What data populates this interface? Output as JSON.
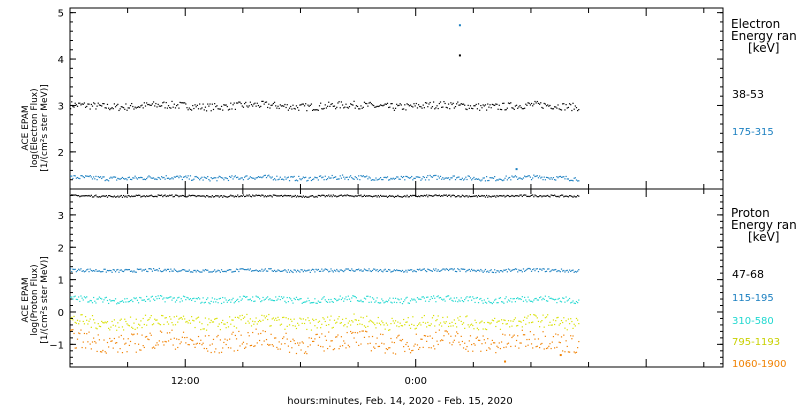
{
  "chart_data": [
    {
      "type": "scatter",
      "ylabel_lines": [
        "ACE EPAM",
        "log(Electron Flux)",
        "[1/(cm²s ster MeV)]"
      ],
      "yticks": [
        2,
        3,
        4,
        5
      ],
      "ylim": [
        1.2,
        5.1
      ],
      "legend_title": [
        "Electron",
        "Energy ran",
        "[keV]"
      ],
      "series": [
        {
          "name": "38-53",
          "color": "#000000",
          "mean": 3.0,
          "jitter": 0.08,
          "spikes": [
            {
              "x": 26.25,
              "y": 4.1
            }
          ]
        },
        {
          "name": "175-315",
          "color": "#1a7fc0",
          "mean": 1.45,
          "jitter": 0.05,
          "spikes": [
            {
              "x": 26.25,
              "y": 4.75
            },
            {
              "x": 29.2,
              "y": 1.65
            }
          ]
        }
      ]
    },
    {
      "type": "scatter",
      "ylabel_lines": [
        "ACE EPAM",
        "log(Proton Flux)",
        "[1/(cm²s ster MeV)]"
      ],
      "yticks": [
        -1,
        0,
        1,
        2,
        3
      ],
      "ylim": [
        -1.7,
        3.8
      ],
      "legend_title": [
        "Proton",
        "Energy ran",
        "[keV]"
      ],
      "series": [
        {
          "name": "",
          "color": "#000000",
          "mean": 3.6,
          "jitter": 0.03,
          "spikes": []
        },
        {
          "name": "47-68",
          "color": "#000000",
          "mean": null,
          "jitter": 0,
          "spikes": []
        },
        {
          "name": "115-195",
          "color": "#1a7fc0",
          "mean": 1.3,
          "jitter": 0.05,
          "spikes": []
        },
        {
          "name": "310-580",
          "color": "#20d8d0",
          "mean": 0.4,
          "jitter": 0.1,
          "spikes": []
        },
        {
          "name": "795-1193",
          "color": "#d8e000",
          "mean": -0.3,
          "jitter": 0.2,
          "spikes": []
        },
        {
          "name": "1060-1900",
          "color": "#f08000",
          "mean": -0.9,
          "jitter": 0.3,
          "spikes": [
            {
              "x": 28.6,
              "y": -1.5
            },
            {
              "x": 31.5,
              "y": -1.3
            }
          ]
        }
      ]
    }
  ],
  "xaxis": {
    "xlim": [
      6,
      40
    ],
    "labelled_ticks": [
      {
        "x": 12,
        "label": "12:00"
      },
      {
        "x": 24,
        "label": "0:00"
      }
    ],
    "data_range": [
      6,
      32.5
    ],
    "xlabel": "hours:minutes, Feb. 14, 2020 - Feb. 15, 2020"
  }
}
